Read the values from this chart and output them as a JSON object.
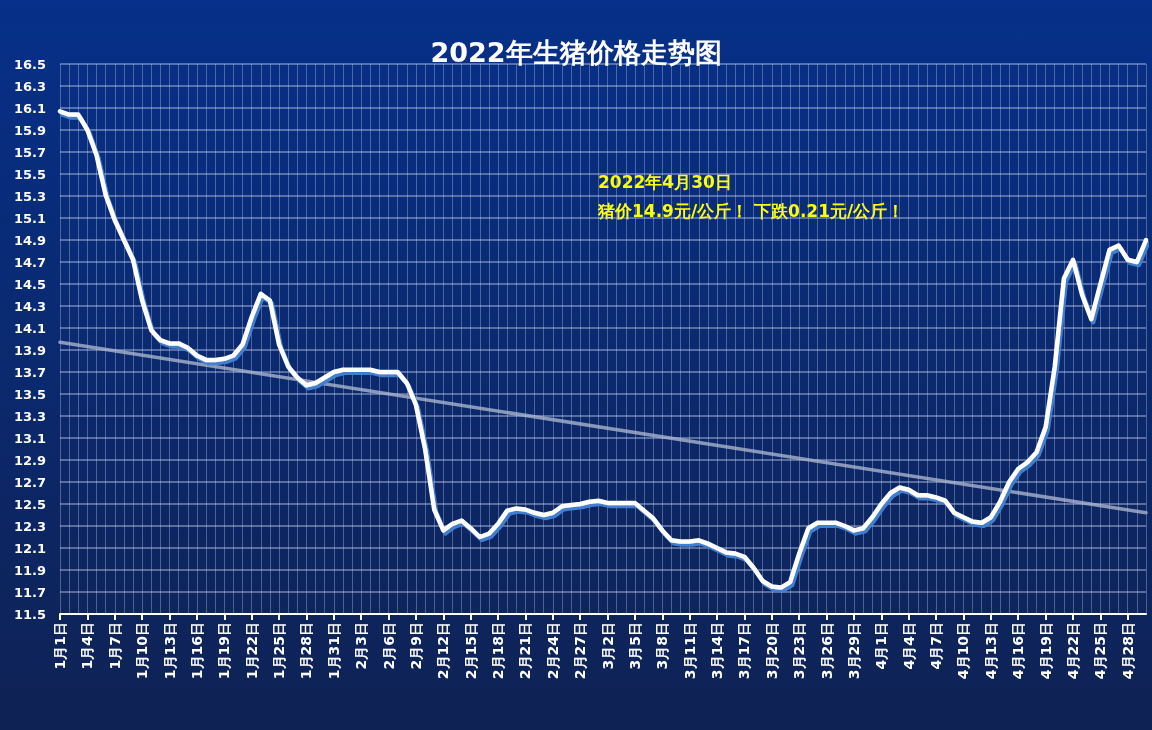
{
  "chart_data": {
    "type": "line",
    "title": "2022年生猪价格走势图",
    "categories": [
      "1月1日",
      null,
      null,
      "1月4日",
      null,
      null,
      "1月7日",
      null,
      null,
      "1月10日",
      null,
      null,
      "1月13日",
      null,
      null,
      "1月16日",
      null,
      null,
      "1月19日",
      null,
      null,
      "1月22日",
      null,
      null,
      "1月25日",
      null,
      null,
      "1月28日",
      null,
      null,
      "1月31日",
      null,
      null,
      "2月3日",
      null,
      null,
      "2月6日",
      null,
      null,
      "2月9日",
      null,
      null,
      "2月12日",
      null,
      null,
      "2月15日",
      null,
      null,
      "2月18日",
      null,
      null,
      "2月21日",
      null,
      null,
      "2月24日",
      null,
      null,
      "2月27日",
      null,
      null,
      "3月2日",
      null,
      null,
      "3月5日",
      null,
      null,
      "3月8日",
      null,
      null,
      "3月11日",
      null,
      null,
      "3月14日",
      null,
      null,
      "3月17日",
      null,
      null,
      "3月20日",
      null,
      null,
      "3月23日",
      null,
      null,
      "3月26日",
      null,
      null,
      "3月29日",
      null,
      null,
      "4月1日",
      null,
      null,
      "4月4日",
      null,
      null,
      "4月7日",
      null,
      null,
      "4月10日",
      null,
      null,
      "4月13日",
      null,
      null,
      "4月16日",
      null,
      null,
      "4月19日",
      null,
      null,
      "4月22日",
      null,
      null,
      "4月25日",
      null,
      null,
      "4月28日",
      null,
      null
    ],
    "series": [
      {
        "color": "#ffffff",
        "values": [
          16.07,
          16.04,
          16.04,
          15.9,
          15.67,
          15.31,
          15.08,
          14.9,
          14.72,
          14.35,
          14.08,
          13.99,
          13.96,
          13.96,
          13.92,
          13.85,
          13.81,
          13.81,
          13.82,
          13.85,
          13.95,
          14.2,
          14.41,
          14.35,
          13.95,
          13.75,
          13.65,
          13.58,
          13.6,
          13.65,
          13.7,
          13.72,
          13.72,
          13.72,
          13.72,
          13.7,
          13.7,
          13.7,
          13.6,
          13.4,
          13.0,
          12.45,
          12.26,
          12.32,
          12.35,
          12.28,
          12.2,
          12.23,
          12.32,
          12.44,
          12.46,
          12.45,
          12.42,
          12.4,
          12.42,
          12.48,
          12.49,
          12.5,
          12.52,
          12.53,
          12.51,
          12.51,
          12.51,
          12.51,
          12.44,
          12.37,
          12.26,
          12.17,
          12.16,
          12.16,
          12.17,
          12.14,
          12.1,
          12.06,
          12.05,
          12.02,
          11.92,
          11.8,
          11.75,
          11.74,
          11.79,
          12.05,
          12.28,
          12.33,
          12.33,
          12.33,
          12.3,
          12.26,
          12.28,
          12.38,
          12.5,
          12.6,
          12.65,
          12.63,
          12.58,
          12.58,
          12.56,
          12.53,
          12.42,
          12.38,
          12.34,
          12.33,
          12.38,
          12.52,
          12.7,
          12.82,
          12.88,
          12.97,
          13.2,
          13.75,
          14.55,
          14.72,
          14.4,
          14.18,
          14.5,
          14.81,
          14.85,
          14.72,
          14.7,
          14.9
        ]
      },
      {
        "color": "#a9b3cc",
        "values": [
          13.97,
          null,
          null,
          null,
          null,
          null,
          null,
          null,
          null,
          null,
          null,
          null,
          null,
          null,
          null,
          null,
          null,
          null,
          null,
          null,
          null,
          null,
          null,
          null,
          null,
          null,
          null,
          null,
          null,
          null,
          null,
          null,
          null,
          null,
          null,
          null,
          null,
          null,
          null,
          null,
          null,
          null,
          null,
          null,
          null,
          null,
          null,
          null,
          null,
          null,
          null,
          null,
          null,
          null,
          null,
          null,
          null,
          null,
          null,
          null,
          null,
          null,
          null,
          null,
          null,
          null,
          null,
          null,
          null,
          null,
          null,
          null,
          null,
          null,
          null,
          null,
          null,
          null,
          null,
          null,
          null,
          null,
          null,
          null,
          null,
          null,
          null,
          null,
          null,
          null,
          null,
          null,
          null,
          null,
          null,
          null,
          null,
          null,
          null,
          null,
          null,
          null,
          null,
          null,
          null,
          null,
          null,
          null,
          null,
          null,
          null,
          null,
          null,
          null,
          null,
          null,
          null,
          null,
          null,
          12.42
        ]
      }
    ],
    "ylim": [
      11.5,
      16.5
    ],
    "yticks": [
      11.5,
      11.7,
      11.9,
      12.1,
      12.3,
      12.5,
      12.7,
      12.9,
      13.1,
      13.3,
      13.5,
      13.7,
      13.9,
      14.1,
      14.3,
      14.5,
      14.7,
      14.9,
      15.1,
      15.3,
      15.5,
      15.7,
      15.9,
      16.1,
      16.3,
      16.5
    ],
    "grid": true,
    "marker": "none",
    "annotations": [
      "2022年4月30日",
      "猪价14.9元/公斤！ 下跌0.21元/公斤！"
    ]
  }
}
